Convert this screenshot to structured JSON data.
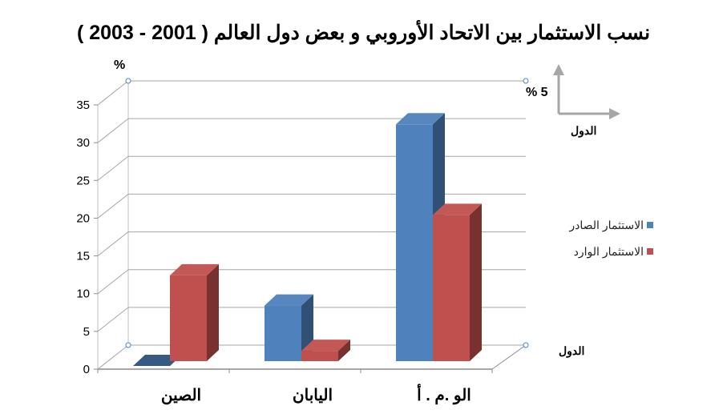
{
  "chart_data": {
    "type": "bar",
    "title": "نسب الاستثمار بين الاتحاد الأوروبي و بعض دول العالم ( 2001 - 2003 )",
    "categories": [
      "الصين",
      "اليابان",
      "الو .م . أ"
    ],
    "series": [
      {
        "name": "الاستثمار الصادر",
        "values": [
          0,
          8,
          32
        ],
        "color": "#4f81bd"
      },
      {
        "name": "الاستثمار الوارد",
        "values": [
          12,
          2,
          20
        ],
        "color": "#c0504d"
      }
    ],
    "ylim": [
      0,
      35
    ],
    "yticks": [
      0,
      5,
      10,
      15,
      20,
      25,
      30,
      35
    ],
    "ylabel": "%",
    "xlabel": "الدول",
    "grid": true,
    "legend_position": "right"
  },
  "annotations": {
    "scale_text": "% 5",
    "scale_axis_label": "الدول"
  }
}
